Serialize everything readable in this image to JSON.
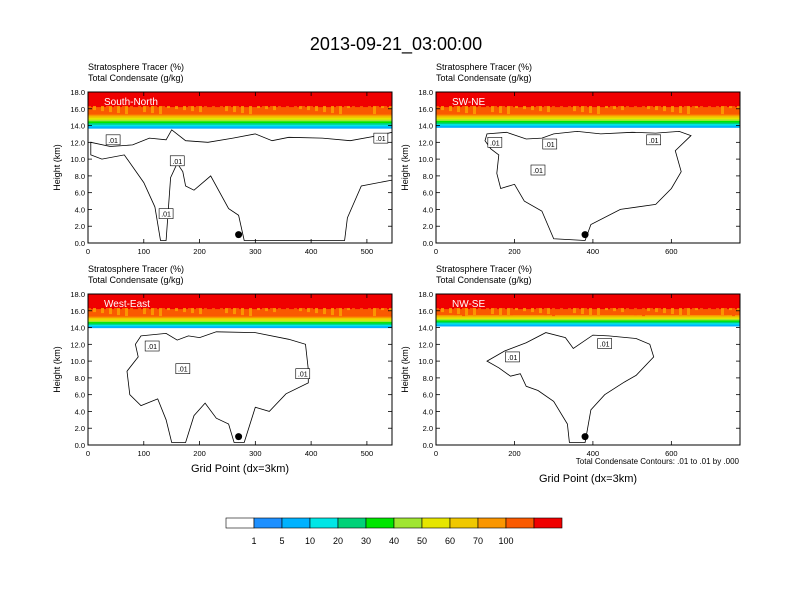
{
  "figure": {
    "title": "2013-09-21_03:00:00",
    "shared_xlabel": "Grid Point (dx=3km)",
    "contour_note": "Total Condensate Contours: .01 to .01 by .000"
  },
  "chart_data": [
    {
      "type": "heatmap",
      "title": "South-North",
      "subtitle_line1": "Stratosphere Tracer   (%)",
      "subtitle_line2": "Total Condensate   (g/kg)",
      "ylabel": "Height (km)",
      "xlim": [
        0,
        545
      ],
      "ylim": [
        0,
        18
      ],
      "xticks": [
        0,
        100,
        200,
        300,
        400,
        500
      ],
      "yticks": [
        0,
        2,
        4,
        6,
        8,
        10,
        12,
        14,
        16,
        18
      ],
      "ytick_labels": [
        "0.0",
        "2.0",
        "4.0",
        "6.0",
        "8.0",
        "10.0",
        "12.0",
        "14.0",
        "16.0",
        "18.0"
      ],
      "tracer_top_km": 16.2,
      "transition_km": [
        15.3,
        13.7
      ],
      "contour_label": ".01",
      "contour_labels": [
        {
          "x": 45,
          "y": 12.3
        },
        {
          "x": 160,
          "y": 9.8
        },
        {
          "x": 140,
          "y": 3.5
        },
        {
          "x": 525,
          "y": 12.5
        }
      ],
      "marker": {
        "x": 270,
        "y": 1.0
      },
      "contour_outline": [
        [
          5,
          12
        ],
        [
          40,
          11.5
        ],
        [
          80,
          11.7
        ],
        [
          110,
          12.5
        ],
        [
          140,
          12.3
        ],
        [
          150,
          13.5
        ],
        [
          175,
          12.2
        ],
        [
          215,
          12
        ],
        [
          260,
          12.5
        ],
        [
          300,
          13
        ],
        [
          330,
          12.2
        ],
        [
          360,
          12.6
        ],
        [
          420,
          12.5
        ],
        [
          470,
          12.2
        ],
        [
          520,
          12.8
        ],
        [
          545,
          13.2
        ],
        [
          545,
          7.5
        ],
        [
          490,
          6.8
        ],
        [
          465,
          3
        ],
        [
          460,
          0.3
        ],
        [
          280,
          0.3
        ],
        [
          270,
          3.3
        ],
        [
          252,
          4.1
        ],
        [
          220,
          8
        ],
        [
          190,
          6.3
        ],
        [
          175,
          6.8
        ],
        [
          170,
          8.5
        ],
        [
          160,
          9.5
        ],
        [
          148,
          7.8
        ],
        [
          140,
          0.3
        ],
        [
          130,
          0.3
        ],
        [
          120,
          4.3
        ],
        [
          100,
          7.2
        ],
        [
          65,
          10.5
        ],
        [
          25,
          10
        ],
        [
          5,
          10.5
        ]
      ]
    },
    {
      "type": "heatmap",
      "title": "SW-NE",
      "subtitle_line1": "Stratosphere Tracer   (%)",
      "subtitle_line2": "Total Condensate   (g/kg)",
      "ylabel": "Height (km)",
      "xlim": [
        0,
        775
      ],
      "ylim": [
        0,
        18
      ],
      "xticks": [
        0,
        200,
        400,
        600
      ],
      "yticks": [
        0,
        2,
        4,
        6,
        8,
        10,
        12,
        14,
        16,
        18
      ],
      "ytick_labels": [
        "0.0",
        "2.0",
        "4.0",
        "6.0",
        "8.0",
        "10.0",
        "12.0",
        "14.0",
        "16.0",
        "18.0"
      ],
      "tracer_top_km": 16.2,
      "transition_km": [
        15.3,
        13.8
      ],
      "contour_label": ".01",
      "contour_labels": [
        {
          "x": 150,
          "y": 12.0
        },
        {
          "x": 290,
          "y": 11.8
        },
        {
          "x": 260,
          "y": 8.7
        },
        {
          "x": 555,
          "y": 12.3
        }
      ],
      "marker": {
        "x": 380,
        "y": 1.0
      },
      "contour_outline": [
        [
          130,
          13
        ],
        [
          180,
          13.2
        ],
        [
          230,
          12.4
        ],
        [
          270,
          12.5
        ],
        [
          300,
          13
        ],
        [
          360,
          13.3
        ],
        [
          420,
          13
        ],
        [
          500,
          13.2
        ],
        [
          560,
          13.1
        ],
        [
          620,
          13.3
        ],
        [
          650,
          12.8
        ],
        [
          610,
          11
        ],
        [
          625,
          8.5
        ],
        [
          600,
          6.5
        ],
        [
          560,
          4.6
        ],
        [
          470,
          4
        ],
        [
          395,
          2.2
        ],
        [
          380,
          0.3
        ],
        [
          300,
          0.5
        ],
        [
          270,
          3.8
        ],
        [
          225,
          5
        ],
        [
          200,
          7
        ],
        [
          165,
          6.5
        ],
        [
          155,
          8.3
        ],
        [
          160,
          10.5
        ],
        [
          140,
          11.2
        ],
        [
          125,
          12.2
        ]
      ]
    },
    {
      "type": "heatmap",
      "title": "West-East",
      "subtitle_line1": "Stratosphere Tracer   (%)",
      "subtitle_line2": "Total Condensate   (g/kg)",
      "ylabel": "Height (km)",
      "xlim": [
        0,
        545
      ],
      "ylim": [
        0,
        18
      ],
      "xticks": [
        0,
        100,
        200,
        300,
        400,
        500
      ],
      "yticks": [
        0,
        2,
        4,
        6,
        8,
        10,
        12,
        14,
        16,
        18
      ],
      "ytick_labels": [
        "0.0",
        "2.0",
        "4.0",
        "6.0",
        "8.0",
        "10.0",
        "12.0",
        "14.0",
        "16.0",
        "18.0"
      ],
      "tracer_top_km": 16.2,
      "transition_km": [
        15.3,
        14.0
      ],
      "contour_label": ".01",
      "contour_labels": [
        {
          "x": 115,
          "y": 11.8
        },
        {
          "x": 170,
          "y": 9.1
        },
        {
          "x": 385,
          "y": 8.5
        }
      ],
      "marker": {
        "x": 270,
        "y": 1.0
      },
      "contour_outline": [
        [
          95,
          13
        ],
        [
          140,
          13.3
        ],
        [
          160,
          12.5
        ],
        [
          180,
          13
        ],
        [
          200,
          12.8
        ],
        [
          230,
          13.5
        ],
        [
          300,
          13.4
        ],
        [
          360,
          12.6
        ],
        [
          390,
          12
        ],
        [
          395,
          9
        ],
        [
          395,
          7.4
        ],
        [
          355,
          6.1
        ],
        [
          325,
          4
        ],
        [
          300,
          4.5
        ],
        [
          280,
          0.3
        ],
        [
          262,
          0.3
        ],
        [
          252,
          2.5
        ],
        [
          230,
          3.2
        ],
        [
          210,
          5
        ],
        [
          190,
          3.5
        ],
        [
          175,
          0.3
        ],
        [
          150,
          0.3
        ],
        [
          140,
          3
        ],
        [
          125,
          5.5
        ],
        [
          95,
          4.7
        ],
        [
          75,
          6
        ],
        [
          70,
          8.8
        ],
        [
          90,
          10.5
        ],
        [
          85,
          12
        ]
      ]
    },
    {
      "type": "heatmap",
      "title": "NW-SE",
      "subtitle_line1": "Stratosphere Tracer   (%)",
      "subtitle_line2": "Total Condensate   (g/kg)",
      "ylabel": "Height (km)",
      "xlim": [
        0,
        775
      ],
      "ylim": [
        0,
        18
      ],
      "xticks": [
        0,
        200,
        400,
        600
      ],
      "yticks": [
        0,
        2,
        4,
        6,
        8,
        10,
        12,
        14,
        16,
        18
      ],
      "ytick_labels": [
        "0.0",
        "2.0",
        "4.0",
        "6.0",
        "8.0",
        "10.0",
        "12.0",
        "14.0",
        "16.0",
        "18.0"
      ],
      "tracer_top_km": 16.2,
      "transition_km": [
        15.5,
        14.2
      ],
      "contour_label": ".01",
      "contour_labels": [
        {
          "x": 195,
          "y": 10.5
        },
        {
          "x": 430,
          "y": 12.1
        }
      ],
      "marker": {
        "x": 380,
        "y": 1.0
      },
      "contour_outline": [
        [
          130,
          10
        ],
        [
          175,
          11.2
        ],
        [
          230,
          12.2
        ],
        [
          280,
          13.4
        ],
        [
          330,
          12.8
        ],
        [
          350,
          11.5
        ],
        [
          400,
          13.1
        ],
        [
          440,
          13
        ],
        [
          510,
          12.7
        ],
        [
          545,
          12
        ],
        [
          555,
          10.5
        ],
        [
          510,
          8.3
        ],
        [
          480,
          7.5
        ],
        [
          430,
          6
        ],
        [
          395,
          4.2
        ],
        [
          380,
          0.3
        ],
        [
          340,
          0.3
        ],
        [
          335,
          2.5
        ],
        [
          300,
          5.2
        ],
        [
          260,
          6.5
        ],
        [
          230,
          7
        ],
        [
          215,
          8.5
        ],
        [
          190,
          8.2
        ],
        [
          160,
          9.2
        ]
      ]
    }
  ],
  "colorbar": {
    "levels": [
      1,
      5,
      10,
      20,
      30,
      40,
      50,
      60,
      70,
      100
    ],
    "colors": [
      "#ffffff",
      "#1e90ff",
      "#00b2ff",
      "#00e6e6",
      "#00d278",
      "#00e600",
      "#a0e632",
      "#e6e600",
      "#f0c800",
      "#fa9600",
      "#fa5a00",
      "#f00000"
    ]
  }
}
